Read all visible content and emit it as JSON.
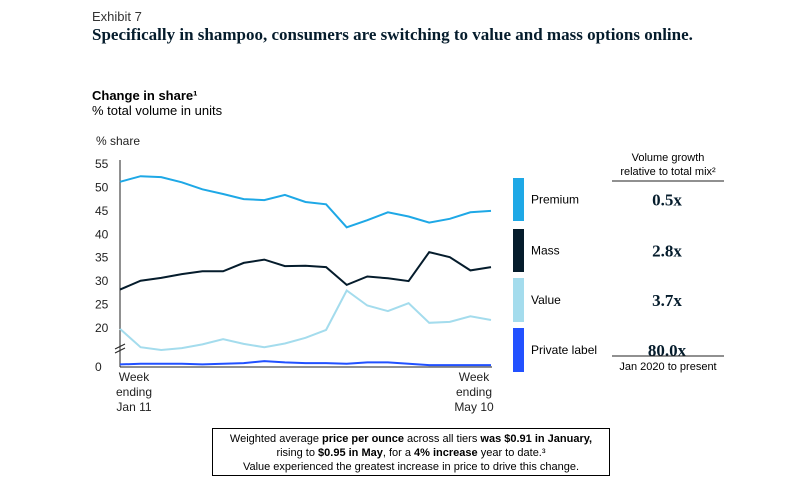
{
  "exhibit": "Exhibit 7",
  "title": "Specifically in shampoo, consumers are switching to value and mass options online.",
  "subtitle": "Change in share¹",
  "subtitle2": "% total volume in units",
  "growth_header": [
    "Volume growth",
    "relative to total mix²"
  ],
  "growth_footer": "Jan 2020 to present",
  "note": {
    "l1_a": "Weighted average ",
    "l1_b": "price per ounce",
    "l1_c": " across all tiers ",
    "l1_d": "was $0.91 in January,",
    "l2_a": "rising to ",
    "l2_b": "$0.95 in May",
    "l2_c": ", for a ",
    "l2_d": "4% increase",
    "l2_e": " year to date.³",
    "l3": "Value experienced the greatest increase in price to drive this change."
  },
  "chart_data": {
    "type": "line",
    "ylabel": "% share",
    "yticks": [
      55,
      50,
      45,
      40,
      35,
      30,
      25,
      20,
      0
    ],
    "x_labels": [
      {
        "lines": [
          "Week",
          "ending",
          "Jan 11"
        ]
      },
      {
        "lines": [
          "Week",
          "ending",
          "May 10"
        ]
      }
    ],
    "series": [
      {
        "name": "Premium",
        "color": "#1ea8e6",
        "growth": "0.5x",
        "values": [
          51.2,
          52.4,
          52.2,
          51.1,
          49.6,
          48.6,
          47.5,
          47.3,
          48.4,
          46.9,
          46.4,
          41.5,
          43.0,
          44.7,
          43.8,
          42.5,
          43.3,
          44.7,
          45.0
        ]
      },
      {
        "name": "Mass",
        "color": "#051c2c",
        "growth": "2.8x",
        "values": [
          28.2,
          30.1,
          30.7,
          31.5,
          32.1,
          32.1,
          33.9,
          34.6,
          33.2,
          33.3,
          33.0,
          29.2,
          31.0,
          30.6,
          30.0,
          36.2,
          35.1,
          32.3,
          33.0
        ]
      },
      {
        "name": "Value",
        "color": "#a4dced",
        "growth": "3.7x",
        "values": [
          19.8,
          15.9,
          15.3,
          15.7,
          16.5,
          17.6,
          16.6,
          15.9,
          16.7,
          17.9,
          19.6,
          28.0,
          24.8,
          23.6,
          25.3,
          21.1,
          21.3,
          22.5,
          21.7
        ]
      },
      {
        "name": "Private label",
        "color": "#2251ff",
        "growth": "80.0x",
        "values": [
          0.4,
          0.5,
          0.5,
          0.5,
          0.4,
          0.5,
          0.6,
          0.9,
          0.7,
          0.6,
          0.6,
          0.5,
          0.7,
          0.7,
          0.5,
          0.3,
          0.3,
          0.3,
          0.3
        ]
      }
    ]
  }
}
